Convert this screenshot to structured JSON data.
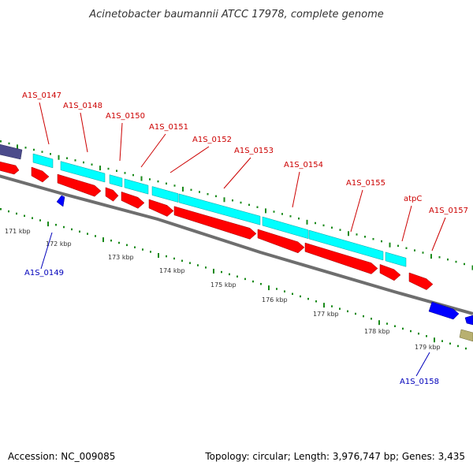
{
  "title": "Acinetobacter baumannii ATCC 17978, complete genome",
  "footer": {
    "accession": "Accession: NC_009085",
    "topology": "Topology: circular; Length: 3,976,747 bp; Genes: 3,435"
  },
  "colors": {
    "backbone": "#808080",
    "cds": "#ff0000",
    "gene": "#00ffff",
    "reverse_cds": "#0000ff",
    "other_left": "#4b4b8b",
    "other_right": "#b8b070",
    "tick": "#1a8a1a",
    "label_forward": "#cc0000",
    "label_reverse": "#0000bb"
  },
  "tick_labels": [
    "171 kbp",
    "172 kbp",
    "173 kbp",
    "174 kbp",
    "175 kbp",
    "176 kbp",
    "177 kbp",
    "178 kbp",
    "179 kbp"
  ],
  "genes_forward": [
    "A1S_0147",
    "A1S_0148",
    "A1S_0150",
    "A1S_0151",
    "A1S_0152",
    "A1S_0153",
    "A1S_0154",
    "A1S_0155",
    "atpC",
    "A1S_0157"
  ],
  "genes_reverse": [
    "A1S_0149",
    "A1S_0158"
  ]
}
